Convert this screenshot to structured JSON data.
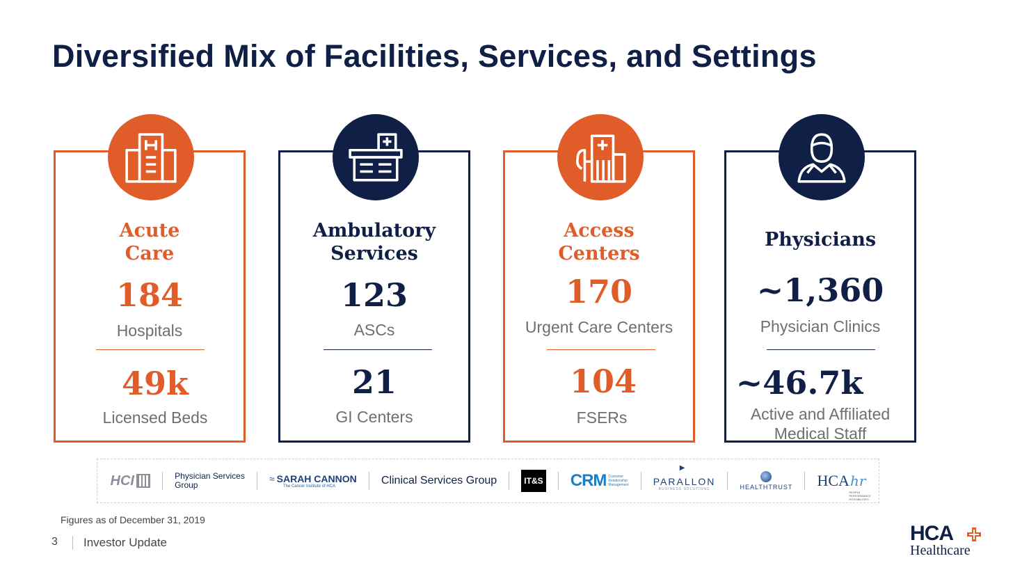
{
  "title": "Diversified Mix of Facilities, Services, and Settings",
  "colors": {
    "orange": "#e05d2a",
    "navy": "#0f1f45",
    "gray": "#6f6f6f"
  },
  "cards": [
    {
      "title_line1": "Acute",
      "title_line2": "Care",
      "icon": "hospital-building-icon",
      "stat1_value": "184",
      "stat1_label": "Hospitals",
      "stat2_value": "49k",
      "stat2_label": "Licensed Beds"
    },
    {
      "title_line1": "Ambulatory",
      "title_line2": "Services",
      "icon": "surgery-center-icon",
      "stat1_value": "123",
      "stat1_label": "ASCs",
      "stat2_value": "21",
      "stat2_label": "GI Centers"
    },
    {
      "title_line1": "Access",
      "title_line2": "Centers",
      "icon": "clinic-building-icon",
      "stat1_value": "170",
      "stat1_label": "Urgent Care Centers",
      "stat2_value": "104",
      "stat2_label": "FSERs"
    },
    {
      "title_line1": "Physicians",
      "icon": "physician-icon",
      "stat1_value": "~1,360",
      "stat1_label": "Physician Clinics",
      "stat2_value": "~46.7k",
      "stat2_label_line1": "Active and Affiliated",
      "stat2_label_line2": "Medical Staff"
    }
  ],
  "logos": {
    "hci": "HCI",
    "physician_services_line1": "Physician Services",
    "physician_services_line2": "Group",
    "sarah_cannon": "SARAH CANNON",
    "sarah_cannon_sub": "The Cancer Institute of HCA",
    "clinical_services": "Clinical Services Group",
    "its": "IT&S",
    "crm": "CRM",
    "crm_sub_line1": "Customer",
    "crm_sub_line2": "Relationship",
    "crm_sub_line3": "Management",
    "parallon": "PARALLON",
    "parallon_sub": "BUSINESS SOLUTIONS",
    "healthtrust": "HEALTHTRUST",
    "hcahr": "HCA",
    "hcahr_script": "hr",
    "hcahr_sub_line1": "PEOPLE",
    "hcahr_sub_line2": "PERFORMANCE",
    "hcahr_sub_line3": "POSSIBILITIES"
  },
  "footnote": "Figures as of December 31, 2019",
  "footer": {
    "page_number": "3",
    "text": "Investor Update"
  },
  "brand": {
    "main": "HCA",
    "sub": "Healthcare"
  }
}
